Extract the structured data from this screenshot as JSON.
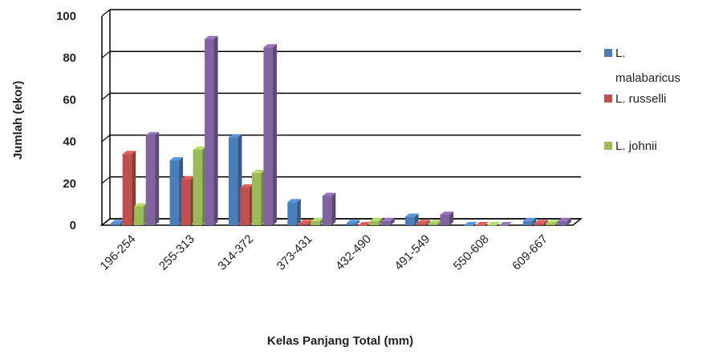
{
  "chart_data": {
    "type": "bar",
    "title": "",
    "xlabel": "Kelas Panjang Total (mm)",
    "ylabel": "Jumlah (ekor)",
    "ylim": [
      0,
      100
    ],
    "yticks": [
      0,
      20,
      40,
      60,
      80,
      100
    ],
    "categories": [
      "196-254",
      "255-313",
      "314-372",
      "373-431",
      "432-490",
      "491-549",
      "550-608",
      "609-667"
    ],
    "series": [
      {
        "name": "L. malabaricus",
        "legend_lines": [
          "L.",
          "malabaricus"
        ],
        "color": "#4a7ebb",
        "values": [
          1,
          31,
          42,
          11,
          1,
          4,
          0,
          2
        ]
      },
      {
        "name": "L. russelli",
        "legend_lines": [
          "L. russelli"
        ],
        "color": "#c0504d",
        "values": [
          34,
          22,
          18,
          1,
          0,
          1,
          0,
          1
        ]
      },
      {
        "name": "L. johnii",
        "legend_lines": [
          "L. johnii"
        ],
        "color": "#9bbb59",
        "values": [
          9,
          36,
          25,
          2,
          2,
          1,
          0,
          1
        ]
      },
      {
        "name": "",
        "legend_lines": [],
        "color": "#8064a2",
        "values": [
          43,
          89,
          85,
          14,
          2,
          5,
          0,
          2
        ]
      }
    ],
    "grid": true,
    "legend": "right"
  }
}
